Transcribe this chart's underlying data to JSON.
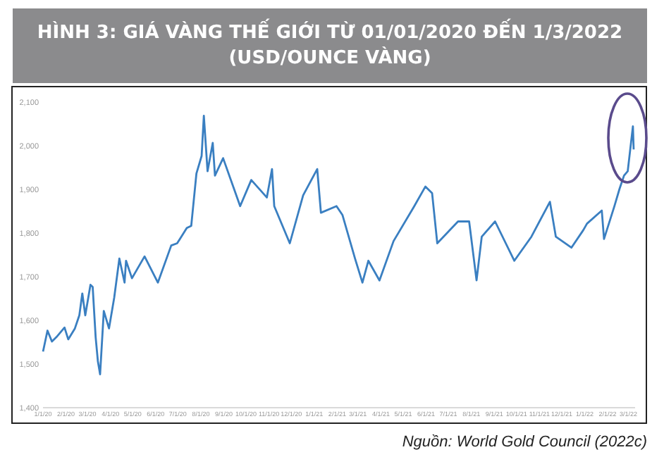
{
  "chart_data": {
    "type": "line",
    "title": "HÌNH 3: GIÁ VÀNG THẾ GIỚI TỪ 01/01/2020 ĐẾN 1/3/2022\n(USD/OUNCE VÀNG)",
    "annotations": [
      "Nguồn: World Gold Council (2022c)"
    ],
    "x": [
      "2020-01-02",
      "2020-01-08",
      "2020-01-14",
      "2020-01-20",
      "2020-01-31",
      "2020-02-05",
      "2020-02-14",
      "2020-02-20",
      "2020-02-24",
      "2020-02-28",
      "2020-03-06",
      "2020-03-09",
      "2020-03-13",
      "2020-03-16",
      "2020-03-19",
      "2020-03-24",
      "2020-03-31",
      "2020-04-07",
      "2020-04-14",
      "2020-04-21",
      "2020-04-23",
      "2020-05-01",
      "2020-05-18",
      "2020-06-05",
      "2020-06-23",
      "2020-07-01",
      "2020-07-14",
      "2020-07-20",
      "2020-07-27",
      "2020-08-03",
      "2020-08-06",
      "2020-08-11",
      "2020-08-18",
      "2020-08-21",
      "2020-09-01",
      "2020-09-24",
      "2020-10-09",
      "2020-10-30",
      "2020-11-06",
      "2020-11-09",
      "2020-11-30",
      "2020-12-18",
      "2021-01-06",
      "2021-01-11",
      "2021-02-01",
      "2021-02-09",
      "2021-02-26",
      "2021-03-08",
      "2021-03-16",
      "2021-03-31",
      "2021-04-19",
      "2021-05-17",
      "2021-06-01",
      "2021-06-10",
      "2021-06-17",
      "2021-07-15",
      "2021-07-30",
      "2021-08-09",
      "2021-08-16",
      "2021-09-03",
      "2021-09-29",
      "2021-10-22",
      "2021-11-16",
      "2021-11-24",
      "2021-12-15",
      "2021-12-31",
      "2022-01-05",
      "2022-01-25",
      "2022-01-28",
      "2022-02-11",
      "2022-02-18",
      "2022-02-24",
      "2022-03-01",
      "2022-03-08",
      "2022-03-09"
    ],
    "values": [
      1527,
      1575,
      1550,
      1560,
      1582,
      1555,
      1580,
      1610,
      1660,
      1610,
      1680,
      1675,
      1560,
      1505,
      1475,
      1620,
      1580,
      1650,
      1740,
      1685,
      1735,
      1695,
      1745,
      1685,
      1770,
      1775,
      1810,
      1815,
      1935,
      1975,
      2067,
      1940,
      2005,
      1930,
      1970,
      1860,
      1920,
      1880,
      1945,
      1860,
      1775,
      1885,
      1945,
      1845,
      1860,
      1840,
      1740,
      1685,
      1735,
      1690,
      1780,
      1860,
      1905,
      1890,
      1775,
      1825,
      1825,
      1690,
      1790,
      1825,
      1735,
      1790,
      1870,
      1790,
      1765,
      1805,
      1820,
      1850,
      1785,
      1860,
      1900,
      1930,
      1940,
      2043,
      1990
    ],
    "color": "#3a7fc1",
    "xlim": [
      "2020-01-01",
      "2022-03-10"
    ],
    "xticks": [
      {
        "value": "2020-01-01",
        "label": "1/1/20"
      },
      {
        "value": "2020-02-01",
        "label": "2/1/20"
      },
      {
        "value": "2020-03-01",
        "label": "3/1/20"
      },
      {
        "value": "2020-04-01",
        "label": "4/1/20"
      },
      {
        "value": "2020-05-01",
        "label": "5/1/20"
      },
      {
        "value": "2020-06-01",
        "label": "6/1/20"
      },
      {
        "value": "2020-07-01",
        "label": "7/1/20"
      },
      {
        "value": "2020-08-01",
        "label": "8/1/20"
      },
      {
        "value": "2020-09-01",
        "label": "9/1/20"
      },
      {
        "value": "2020-10-01",
        "label": "10/1/20"
      },
      {
        "value": "2020-11-01",
        "label": "11/1/20"
      },
      {
        "value": "2020-12-01",
        "label": "12/1/20"
      },
      {
        "value": "2021-01-01",
        "label": "1/1/21"
      },
      {
        "value": "2021-02-01",
        "label": "2/1/21"
      },
      {
        "value": "2021-03-01",
        "label": "3/1/21"
      },
      {
        "value": "2021-04-01",
        "label": "4/1/21"
      },
      {
        "value": "2021-05-01",
        "label": "5/1/21"
      },
      {
        "value": "2021-06-01",
        "label": "6/1/21"
      },
      {
        "value": "2021-07-01",
        "label": "7/1/21"
      },
      {
        "value": "2021-08-01",
        "label": "8/1/21"
      },
      {
        "value": "2021-09-01",
        "label": "9/1/21"
      },
      {
        "value": "2021-10-01",
        "label": "10/1/21"
      },
      {
        "value": "2021-11-01",
        "label": "11/1/21"
      },
      {
        "value": "2021-12-01",
        "label": "12/1/21"
      },
      {
        "value": "2022-01-01",
        "label": "1/1/22"
      },
      {
        "value": "2022-02-01",
        "label": "2/1/22"
      },
      {
        "value": "2022-03-01",
        "label": "3/1/22"
      }
    ],
    "ylim": [
      1400,
      2100
    ],
    "yticks": [
      {
        "value": 1400,
        "label": "1,400"
      },
      {
        "value": 1500,
        "label": "1,500"
      },
      {
        "value": 1600,
        "label": "1,600"
      },
      {
        "value": 1700,
        "label": "1,700"
      },
      {
        "value": 1800,
        "label": "1,800"
      },
      {
        "value": 1900,
        "label": "1,900"
      },
      {
        "value": 2000,
        "label": "2,000"
      },
      {
        "value": 2100,
        "label": "2,100"
      }
    ],
    "grid": false,
    "marker": "none",
    "line_style": "solid"
  }
}
